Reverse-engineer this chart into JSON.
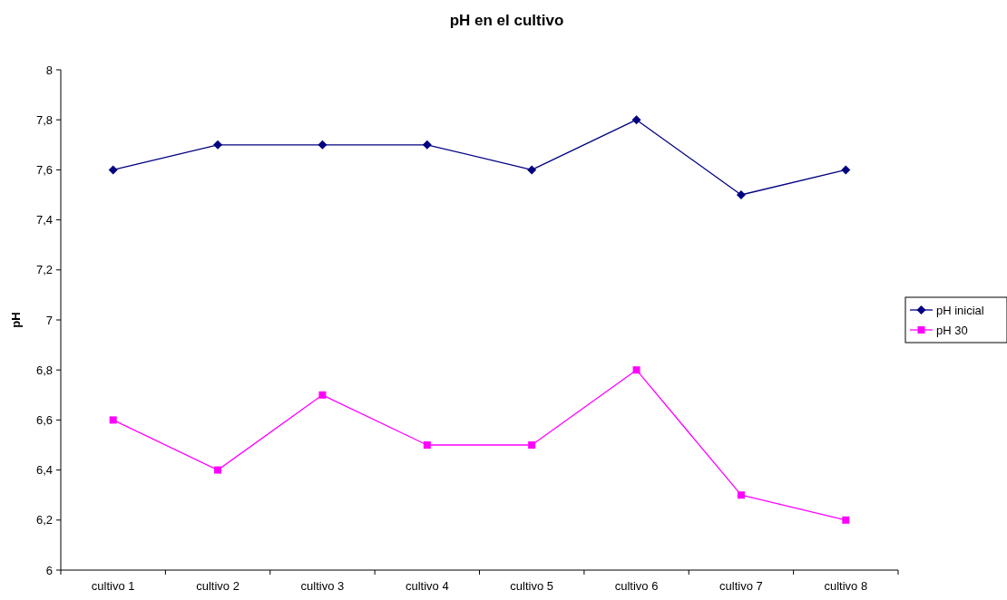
{
  "chart_data": {
    "type": "line",
    "title": "pH en el cultivo",
    "ylabel": "pH",
    "categories": [
      "cultivo 1",
      "cultivo 2",
      "cultivo 3",
      "cultivo 4",
      "cultivo 5",
      "cultivo 6",
      "cultivo 7",
      "cultivo 8"
    ],
    "series": [
      {
        "name": "pH inicial",
        "color": "#000080",
        "marker": "diamond",
        "values": [
          7.6,
          7.7,
          7.7,
          7.7,
          7.6,
          7.8,
          7.5,
          7.6
        ]
      },
      {
        "name": "pH 30",
        "color": "#ff00ff",
        "marker": "square",
        "values": [
          6.6,
          6.4,
          6.7,
          6.5,
          6.5,
          6.8,
          6.3,
          6.2
        ]
      }
    ],
    "ylim": [
      6,
      8
    ],
    "yticks": [
      6,
      {
        "value": 6.2,
        "label": "6,2"
      },
      {
        "value": 6.4,
        "label": "6,4"
      },
      {
        "value": 6.6,
        "label": "6,6"
      },
      {
        "value": 6.8,
        "label": "6,8"
      },
      7,
      {
        "value": 7.2,
        "label": "7,2"
      },
      {
        "value": 7.4,
        "label": "7,4"
      },
      {
        "value": 7.6,
        "label": "7,6"
      },
      {
        "value": 7.8,
        "label": "7,8"
      },
      8
    ],
    "grid": false,
    "legend": "right",
    "line_style": "solid"
  }
}
